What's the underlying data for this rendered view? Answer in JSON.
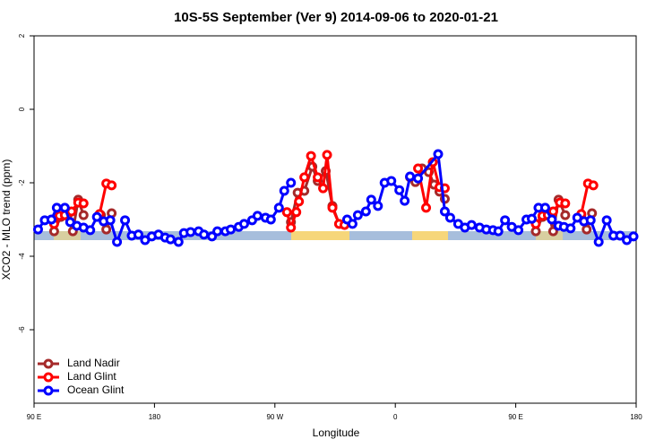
{
  "chart_data": {
    "type": "line",
    "title": "10S-5S September (Ver 9)   2014-09-06 to 2020-01-21",
    "xlabel": "Longitude",
    "ylabel": "XCO2 - MLO trend (ppm)",
    "xlim": [
      90,
      540
    ],
    "ylim": [
      -8,
      2
    ],
    "xticks": [
      {
        "value": 90,
        "label": "90 E"
      },
      180,
      {
        "value": 270,
        "label": "90 W"
      },
      {
        "value": 360,
        "label": "0"
      },
      {
        "value": 450,
        "label": "90 E"
      },
      180
    ],
    "yticks": [
      -6,
      -4,
      -2,
      0,
      2
    ],
    "legend": "bottomleft",
    "series": [
      {
        "name": "Land Nadir",
        "color": "#a52a2a",
        "x": [
          105,
          110,
          115,
          119,
          123,
          127,
          null,
          140,
          144,
          148,
          null,
          282,
          287,
          292,
          298,
          302,
          308,
          313,
          318,
          null,
          371,
          375,
          380,
          385,
          389,
          393,
          397,
          null,
          465,
          470,
          475,
          478,
          482,
          487,
          null,
          499,
          503,
          507
        ],
        "values": [
          -3.32,
          -2.93,
          -2.9,
          -3.32,
          -2.46,
          -2.88,
          null,
          -2.88,
          -3.27,
          -2.83,
          null,
          -3.07,
          -2.27,
          -2.22,
          -1.56,
          -1.95,
          -1.68,
          -2.63,
          -3.12,
          null,
          -1.85,
          -1.98,
          -1.61,
          -1.71,
          -2.05,
          -2.24,
          -2.44,
          null,
          -3.32,
          -2.93,
          -2.9,
          -3.32,
          -2.46,
          -2.88,
          null,
          -2.88,
          -3.27,
          -2.83
        ]
      },
      {
        "name": "Land Glint",
        "color": "#ff0000",
        "x": [
          105,
          109,
          113,
          118,
          123,
          127,
          null,
          139,
          144,
          148,
          null,
          279,
          282,
          286,
          288,
          292,
          297,
          302,
          306,
          309,
          313,
          318,
          322,
          null,
          377,
          383,
          388,
          393,
          397,
          null,
          465,
          470,
          474,
          478,
          483,
          487,
          null,
          499,
          504,
          508
        ],
        "values": [
          -3.12,
          -2.9,
          -2.88,
          -2.78,
          -2.54,
          -2.56,
          null,
          -2.85,
          -2.02,
          -2.07,
          null,
          -2.8,
          -3.22,
          -2.8,
          -2.51,
          -1.85,
          -1.27,
          -1.85,
          -2.15,
          -1.24,
          -2.68,
          -3.12,
          -3.15,
          null,
          -1.61,
          -2.68,
          -1.44,
          -2.12,
          -2.15,
          null,
          -3.12,
          -2.9,
          -2.88,
          -2.78,
          -2.54,
          -2.56,
          null,
          -2.85,
          -2.02,
          -2.07
        ]
      },
      {
        "name": "Ocean Glint",
        "color": "#0000ff",
        "x": [
          93,
          98,
          103,
          107,
          113,
          117,
          122,
          127,
          132,
          137,
          142,
          147,
          152,
          158,
          163,
          168,
          173,
          178,
          183,
          188,
          192,
          198,
          202,
          207,
          213,
          217,
          223,
          227,
          233,
          237,
          243,
          247,
          253,
          257,
          263,
          267,
          273,
          277,
          282,
          null,
          324,
          328,
          332,
          338,
          342,
          347,
          352,
          357,
          363,
          367,
          371,
          377,
          392,
          397,
          401,
          407,
          412,
          417,
          423,
          428,
          433,
          437,
          442,
          447,
          452,
          458,
          462,
          467,
          472,
          477,
          482,
          486,
          491,
          496,
          501,
          506,
          512,
          518,
          523,
          528,
          533,
          538
        ],
        "values": [
          -3.27,
          -3.02,
          -3.0,
          -2.68,
          -2.68,
          -3.07,
          -3.17,
          -3.22,
          -3.29,
          -2.93,
          -3.05,
          -3.02,
          -3.61,
          -3.02,
          -3.44,
          -3.41,
          -3.56,
          -3.46,
          -3.41,
          -3.49,
          -3.54,
          -3.61,
          -3.37,
          -3.34,
          -3.32,
          -3.41,
          -3.46,
          -3.32,
          -3.32,
          -3.27,
          -3.2,
          -3.12,
          -3.02,
          -2.9,
          -2.95,
          -3.0,
          -2.68,
          -2.22,
          -2.0,
          null,
          -3.0,
          -3.12,
          -2.88,
          -2.78,
          -2.46,
          -2.63,
          -2.0,
          -1.95,
          -2.2,
          -2.49,
          -1.83,
          -1.88,
          -1.22,
          -2.78,
          -2.95,
          -3.12,
          -3.22,
          -3.15,
          -3.22,
          -3.27,
          -3.29,
          -3.32,
          -3.02,
          -3.2,
          -3.29,
          -3.0,
          -2.98,
          -2.68,
          -2.68,
          -3.0,
          -3.17,
          -3.2,
          -3.24,
          -2.95,
          -3.05,
          -3.02,
          -3.61,
          -3.02,
          -3.44,
          -3.44,
          -3.56,
          -3.46
        ]
      }
    ]
  }
}
